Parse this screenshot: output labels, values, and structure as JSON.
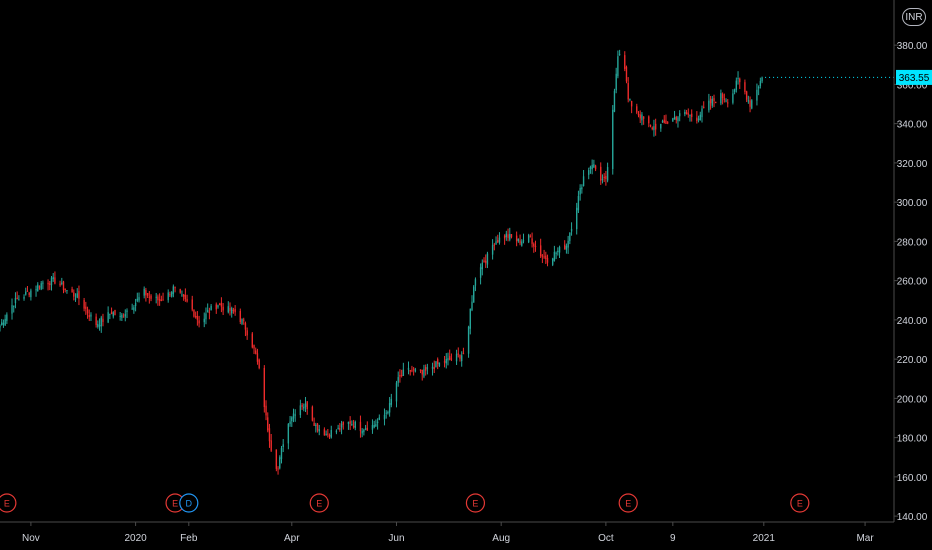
{
  "currency_button": "INR",
  "last_price_label": "363.55",
  "colors": {
    "up": "#26a69a",
    "down": "#ef2b2b",
    "accent": "#00e5ff",
    "background": "#000000",
    "axis": "#4a4a4a",
    "earnings": "#e53935",
    "dividend": "#2196f3"
  },
  "chart_data": {
    "type": "candlestick",
    "y_ticks": [
      "380.00",
      "360.00",
      "340.00",
      "320.00",
      "300.00",
      "280.00",
      "260.00",
      "240.00",
      "220.00",
      "200.00",
      "180.00",
      "160.00",
      "140.00"
    ],
    "y_tick_values": [
      380,
      360,
      340,
      320,
      300,
      280,
      260,
      240,
      220,
      200,
      180,
      160,
      140
    ],
    "ylim": [
      137,
      403
    ],
    "x_ticks": [
      "Nov",
      "2020",
      "Feb",
      "Apr",
      "Jun",
      "Aug",
      "Oct",
      "9",
      "2021",
      "Mar"
    ],
    "x_tick_dates": [
      "2019-11-01",
      "2020-01-01",
      "2020-02-01",
      "2020-04-01",
      "2020-06-01",
      "2020-08-01",
      "2020-10-01",
      "2020-11-09",
      "2021-01-01",
      "2021-03-01"
    ],
    "xlim": [
      "2019-10-14",
      "2021-04-09"
    ],
    "last_price": 363.55,
    "grid": false,
    "close_path": [
      [
        "2019-10-14",
        237
      ],
      [
        "2019-10-22",
        249
      ],
      [
        "2019-11-01",
        255
      ],
      [
        "2019-11-08",
        259
      ],
      [
        "2019-11-15",
        260
      ],
      [
        "2019-11-22",
        255
      ],
      [
        "2019-11-29",
        251
      ],
      [
        "2019-12-04",
        244
      ],
      [
        "2019-12-09",
        238
      ],
      [
        "2019-12-13",
        240
      ],
      [
        "2019-12-18",
        244
      ],
      [
        "2019-12-23",
        241
      ],
      [
        "2019-12-27",
        245
      ],
      [
        "2020-01-01",
        249
      ],
      [
        "2020-01-06",
        254
      ],
      [
        "2020-01-10",
        251
      ],
      [
        "2020-01-15",
        250
      ],
      [
        "2020-01-20",
        253
      ],
      [
        "2020-01-23",
        256
      ],
      [
        "2020-01-27",
        252
      ],
      [
        "2020-02-01",
        248
      ],
      [
        "2020-02-05",
        242
      ],
      [
        "2020-02-08",
        238
      ],
      [
        "2020-02-12",
        244
      ],
      [
        "2020-02-18",
        248
      ],
      [
        "2020-02-24",
        245
      ],
      [
        "2020-02-28",
        244
      ],
      [
        "2020-03-04",
        238
      ],
      [
        "2020-03-08",
        230
      ],
      [
        "2020-03-11",
        222
      ],
      [
        "2020-03-14",
        210
      ],
      [
        "2020-03-17",
        190
      ],
      [
        "2020-03-21",
        170
      ],
      [
        "2020-03-24",
        164
      ],
      [
        "2020-03-27",
        178
      ],
      [
        "2020-03-31",
        190
      ],
      [
        "2020-04-06",
        197
      ],
      [
        "2020-04-10",
        196
      ],
      [
        "2020-04-15",
        186
      ],
      [
        "2020-04-21",
        182
      ],
      [
        "2020-04-28",
        184
      ],
      [
        "2020-05-05",
        188
      ],
      [
        "2020-05-11",
        185
      ],
      [
        "2020-05-18",
        186
      ],
      [
        "2020-05-24",
        190
      ],
      [
        "2020-05-28",
        196
      ],
      [
        "2020-06-01",
        208
      ],
      [
        "2020-06-06",
        214
      ],
      [
        "2020-06-11",
        214
      ],
      [
        "2020-06-16",
        212
      ],
      [
        "2020-06-21",
        216
      ],
      [
        "2020-06-27",
        218
      ],
      [
        "2020-07-03",
        220
      ],
      [
        "2020-07-08",
        222
      ],
      [
        "2020-07-12",
        224
      ],
      [
        "2020-07-14",
        245
      ],
      [
        "2020-07-17",
        262
      ],
      [
        "2020-07-20",
        268
      ],
      [
        "2020-07-24",
        272
      ],
      [
        "2020-07-28",
        280
      ],
      [
        "2020-08-04",
        283
      ],
      [
        "2020-08-11",
        280
      ],
      [
        "2020-08-18",
        282
      ],
      [
        "2020-08-23",
        274
      ],
      [
        "2020-08-28",
        271
      ],
      [
        "2020-09-03",
        275
      ],
      [
        "2020-09-08",
        278
      ],
      [
        "2020-09-13",
        295
      ],
      [
        "2020-09-18",
        313
      ],
      [
        "2020-09-23",
        320
      ],
      [
        "2020-09-28",
        312
      ],
      [
        "2020-10-01",
        310
      ],
      [
        "2020-10-04",
        335
      ],
      [
        "2020-10-08",
        376
      ],
      [
        "2020-10-11",
        378
      ],
      [
        "2020-10-14",
        352
      ],
      [
        "2020-10-20",
        345
      ],
      [
        "2020-10-27",
        338
      ],
      [
        "2020-11-02",
        339
      ],
      [
        "2020-11-10",
        343
      ],
      [
        "2020-11-16",
        345
      ],
      [
        "2020-11-23",
        343
      ],
      [
        "2020-11-30",
        350
      ],
      [
        "2020-12-07",
        354
      ],
      [
        "2020-12-12",
        352
      ],
      [
        "2020-12-17",
        362
      ],
      [
        "2020-12-20",
        358
      ],
      [
        "2020-12-24",
        350
      ],
      [
        "2020-12-28",
        358
      ],
      [
        "2020-12-31",
        363.55
      ]
    ],
    "events": [
      {
        "type": "E",
        "date": "2019-10-18"
      },
      {
        "type": "E",
        "date": "2020-01-24"
      },
      {
        "type": "D",
        "date": "2020-02-01"
      },
      {
        "type": "E",
        "date": "2020-04-17"
      },
      {
        "type": "E",
        "date": "2020-07-17"
      },
      {
        "type": "E",
        "date": "2020-10-14"
      },
      {
        "type": "E",
        "date": "2021-01-22"
      }
    ]
  }
}
